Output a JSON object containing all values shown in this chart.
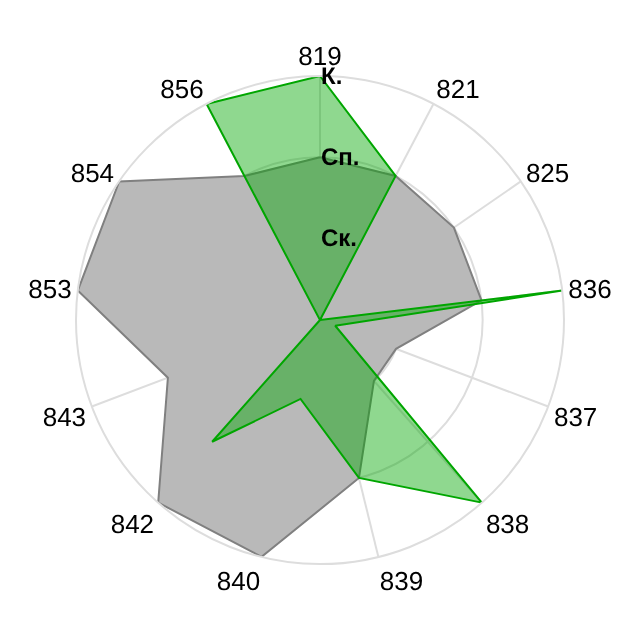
{
  "chart_data": {
    "type": "radar",
    "categories": [
      "819",
      "821",
      "825",
      "836",
      "837",
      "838",
      "839",
      "840",
      "842",
      "843",
      "853",
      "854",
      "856"
    ],
    "series": [
      {
        "color": "#b9b9b9",
        "values": [
          2,
          2,
          2,
          2,
          1,
          1,
          2,
          3,
          3,
          2,
          3,
          3,
          2
        ]
      },
      {
        "color": "#00a600",
        "values": [
          3,
          2,
          0,
          3,
          0.2,
          3,
          2,
          1,
          2,
          0,
          0,
          0,
          3
        ]
      }
    ],
    "ylim": [
      0,
      3
    ],
    "yticks": [
      {
        "value": 1,
        "label": "Ск."
      },
      {
        "value": 2,
        "label": "Сп."
      },
      {
        "value": 3,
        "label": "К."
      }
    ],
    "grid": true
  }
}
